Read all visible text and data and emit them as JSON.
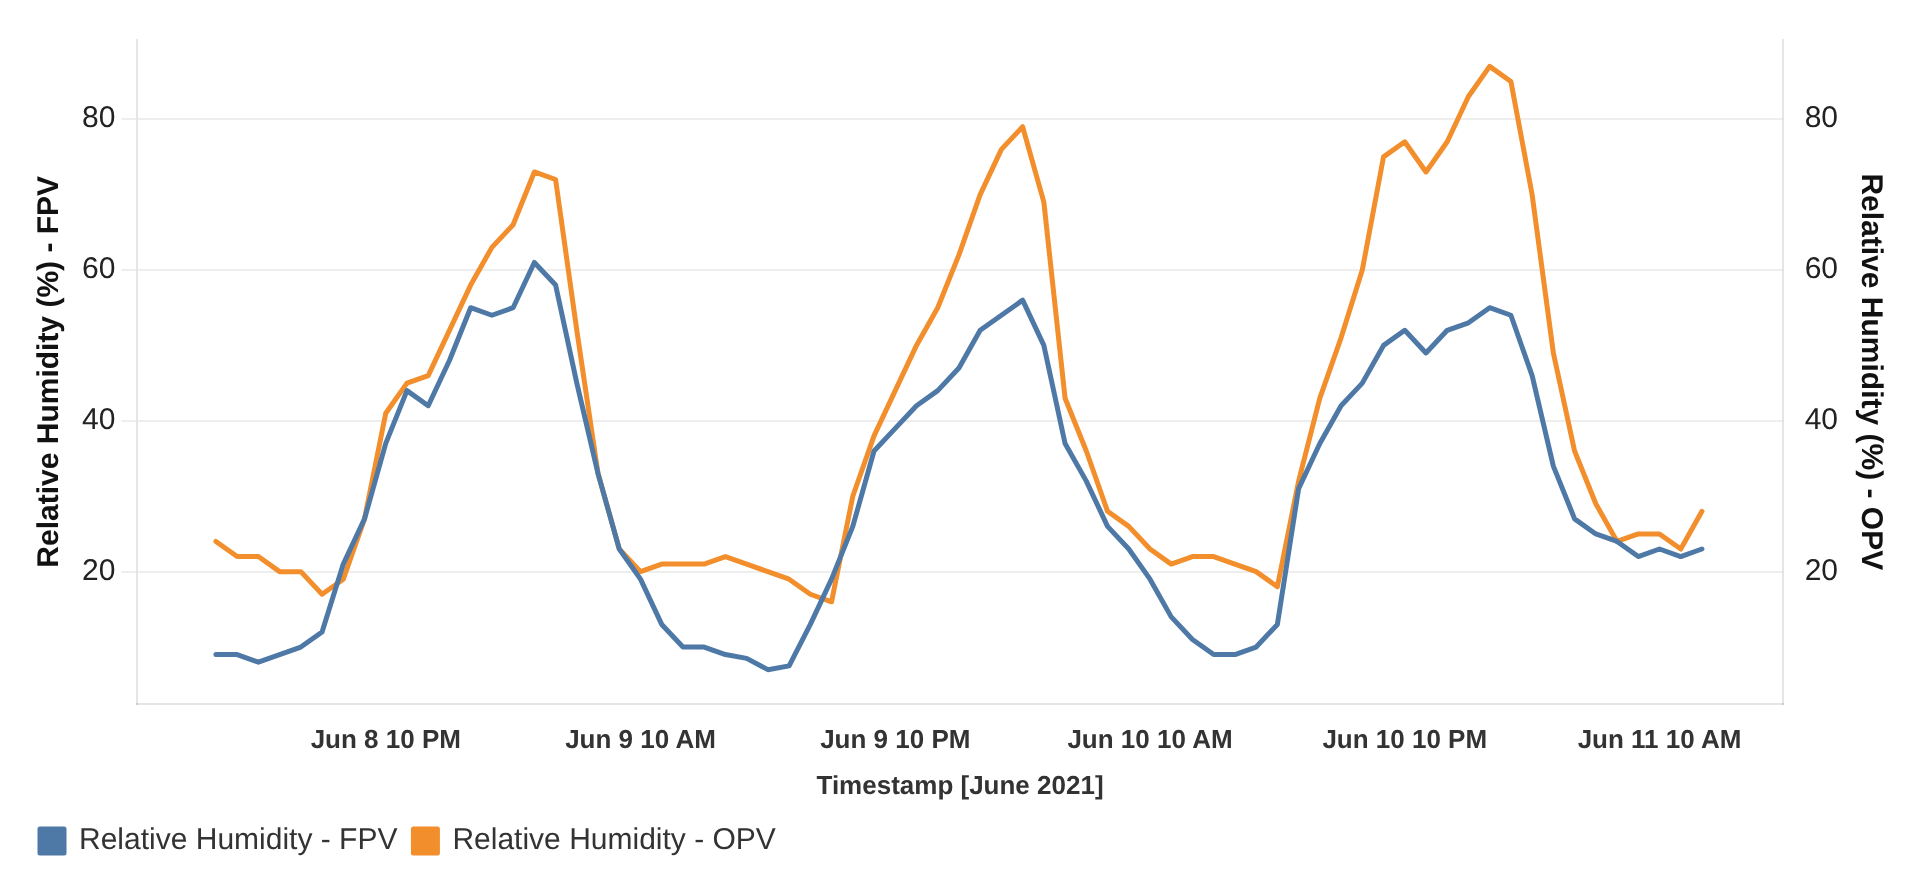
{
  "chart_data": {
    "type": "line",
    "xlabel": "Timestamp [June 2021]",
    "ylabel": "Relative Humidity (%) - FPV",
    "y2label": "Relative Humidity (%) - OPV",
    "x": [
      "2021-06-08T14:00",
      "2021-06-08T15:00",
      "2021-06-08T16:00",
      "2021-06-08T17:00",
      "2021-06-08T18:00",
      "2021-06-08T19:00",
      "2021-06-08T20:00",
      "2021-06-08T21:00",
      "2021-06-08T22:00",
      "2021-06-08T23:00",
      "2021-06-09T00:00",
      "2021-06-09T01:00",
      "2021-06-09T02:00",
      "2021-06-09T03:00",
      "2021-06-09T04:00",
      "2021-06-09T05:00",
      "2021-06-09T06:00",
      "2021-06-09T07:00",
      "2021-06-09T08:00",
      "2021-06-09T09:00",
      "2021-06-09T10:00",
      "2021-06-09T11:00",
      "2021-06-09T12:00",
      "2021-06-09T13:00",
      "2021-06-09T14:00",
      "2021-06-09T15:00",
      "2021-06-09T16:00",
      "2021-06-09T17:00",
      "2021-06-09T18:00",
      "2021-06-09T19:00",
      "2021-06-09T20:00",
      "2021-06-09T21:00",
      "2021-06-09T22:00",
      "2021-06-09T23:00",
      "2021-06-10T00:00",
      "2021-06-10T01:00",
      "2021-06-10T02:00",
      "2021-06-10T03:00",
      "2021-06-10T04:00",
      "2021-06-10T05:00",
      "2021-06-10T06:00",
      "2021-06-10T07:00",
      "2021-06-10T08:00",
      "2021-06-10T09:00",
      "2021-06-10T10:00",
      "2021-06-10T11:00",
      "2021-06-10T12:00",
      "2021-06-10T13:00",
      "2021-06-10T14:00",
      "2021-06-10T15:00",
      "2021-06-10T16:00",
      "2021-06-10T17:00",
      "2021-06-10T18:00",
      "2021-06-10T19:00",
      "2021-06-10T20:00",
      "2021-06-10T21:00",
      "2021-06-10T22:00",
      "2021-06-10T23:00",
      "2021-06-11T00:00",
      "2021-06-11T01:00",
      "2021-06-11T02:00",
      "2021-06-11T03:00",
      "2021-06-11T04:00",
      "2021-06-11T05:00",
      "2021-06-11T06:00",
      "2021-06-11T07:00",
      "2021-06-11T08:00",
      "2021-06-11T09:00",
      "2021-06-11T10:00",
      "2021-06-11T11:00",
      "2021-06-11T12:00"
    ],
    "xlim": [
      "2021-06-08T10:18",
      "2021-06-11T15:48"
    ],
    "xticks": [
      {
        "value": "2021-06-08T22:00",
        "label": "Jun 8 10 PM"
      },
      {
        "value": "2021-06-09T10:00",
        "label": "Jun 9 10 AM"
      },
      {
        "value": "2021-06-09T22:00",
        "label": "Jun 9 10 PM"
      },
      {
        "value": "2021-06-10T10:00",
        "label": "Jun 10 10 AM"
      },
      {
        "value": "2021-06-10T22:00",
        "label": "Jun 10 10 PM"
      },
      {
        "value": "2021-06-11T10:00",
        "label": "Jun 11 10 AM"
      }
    ],
    "ylim": [
      2.5,
      90.5
    ],
    "yticks": [
      20,
      40,
      60,
      80
    ],
    "y2lim": [
      2.5,
      90.5
    ],
    "y2ticks": [
      20,
      40,
      60,
      80
    ],
    "grid": "y",
    "legend": "bottom left",
    "marker": "none",
    "line_style": "solid",
    "series": [
      {
        "name": "Relative Humidity - FPV",
        "color": "#4e79a7",
        "values": [
          9,
          9,
          8,
          9,
          10,
          12,
          21,
          27,
          37,
          44,
          42,
          48,
          55,
          54,
          55,
          61,
          58,
          45,
          33,
          23,
          19,
          13,
          10,
          10,
          9,
          8.5,
          7,
          7.5,
          13,
          19,
          26,
          36,
          39,
          42,
          44,
          47,
          52,
          54,
          56,
          50,
          37,
          32,
          26,
          23,
          19,
          14,
          11,
          9,
          9,
          10,
          13,
          31,
          37,
          42,
          45,
          50,
          52,
          49,
          52,
          53,
          55,
          54,
          46,
          34,
          27,
          25,
          24,
          22,
          23,
          22,
          23
        ]
      },
      {
        "name": "Relative Humidity - OPV",
        "color": "#f28e2b",
        "axis": "y2",
        "values": [
          24,
          22,
          22,
          20,
          20,
          17,
          19,
          27,
          41,
          45,
          46,
          52,
          58,
          63,
          66,
          73,
          72,
          52,
          33,
          23,
          20,
          21,
          21,
          21,
          22,
          21,
          20,
          19,
          17,
          16,
          30,
          38,
          44,
          50,
          55,
          62,
          70,
          76,
          79,
          69,
          43,
          36,
          28,
          26,
          23,
          21,
          22,
          22,
          21,
          20,
          18,
          32,
          43,
          51,
          60,
          75,
          77,
          73,
          77,
          83,
          87,
          85,
          70,
          49,
          36,
          29,
          24,
          25,
          25,
          23,
          28
        ]
      }
    ]
  }
}
